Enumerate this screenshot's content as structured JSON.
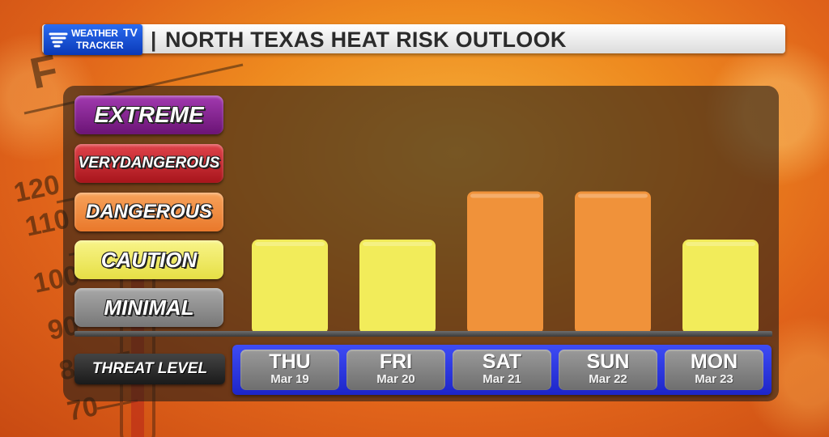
{
  "header": {
    "logo_line1": "WEATHER",
    "logo_tv": "TV",
    "logo_line2": "TRACKER",
    "title": "NORTH TEXAS HEAT RISK OUTLOOK"
  },
  "thermometer_marks": [
    "F",
    "120",
    "110",
    "100",
    "90",
    "80",
    "70"
  ],
  "chart_data": {
    "type": "bar",
    "categories": [
      "THU",
      "FRI",
      "SAT",
      "SUN",
      "MON"
    ],
    "dates": [
      "Mar 19",
      "Mar 20",
      "Mar 21",
      "Mar 22",
      "Mar 23"
    ],
    "levels": [
      "MINIMAL",
      "CAUTION",
      "DANGEROUS",
      "VERY DANGEROUS",
      "EXTREME"
    ],
    "values": [
      "CAUTION",
      "CAUTION",
      "DANGEROUS",
      "DANGEROUS",
      "CAUTION"
    ],
    "level_index": [
      1,
      1,
      2,
      2,
      1
    ],
    "x_axis_label": "THREAT LEVEL",
    "colors": {
      "CAUTION": "#f2ec5a",
      "DANGEROUS": "#f0923a"
    }
  },
  "levels_labels": {
    "extreme": "EXTREME",
    "very_line1": "VERY",
    "very_line2": "DANGEROUS",
    "dangerous": "DANGEROUS",
    "caution": "CAUTION",
    "minimal": "MINIMAL"
  },
  "threat_label": "THREAT LEVEL"
}
